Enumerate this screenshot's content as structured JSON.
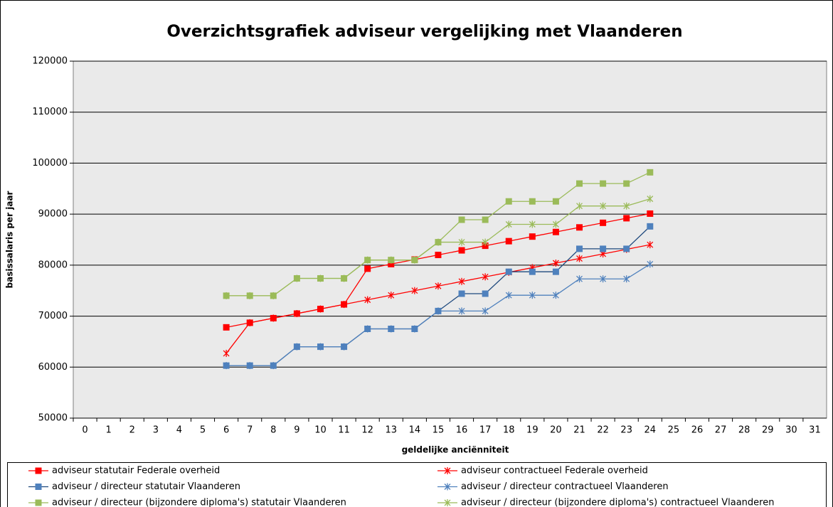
{
  "chart_data": {
    "type": "line",
    "title": "Overzichtsgrafiek adviseur vergelijking met Vlaanderen",
    "x_label": "geldelijke anciënniteit",
    "y_label": "basissalaris per jaar",
    "categories": [
      0,
      1,
      2,
      3,
      4,
      5,
      6,
      7,
      8,
      9,
      10,
      11,
      12,
      13,
      14,
      15,
      16,
      17,
      18,
      19,
      20,
      21,
      22,
      23,
      24,
      25,
      26,
      27,
      28,
      29,
      30,
      31
    ],
    "ylim": [
      50000,
      120000
    ],
    "yticks": [
      50000,
      60000,
      70000,
      80000,
      90000,
      100000,
      110000,
      120000
    ],
    "grid": true,
    "legend": "bottom",
    "series": [
      {
        "name": "adviseur statutair Federale overheid",
        "color": "#ff0000",
        "line_color": "#ff0000",
        "marker": "square",
        "values": [
          null,
          null,
          null,
          null,
          null,
          null,
          67800,
          68700,
          69600,
          70500,
          71400,
          72300,
          79300,
          80200,
          81100,
          82000,
          82900,
          83800,
          84700,
          85600,
          86500,
          87400,
          88300,
          89200,
          90100,
          null,
          null,
          null,
          null,
          null,
          null,
          null
        ]
      },
      {
        "name": "adviseur contractueel Federale overheid",
        "color": "#ff0000",
        "line_color": "#ff0000",
        "marker": "star",
        "values": [
          null,
          null,
          null,
          null,
          null,
          null,
          62700,
          68700,
          69600,
          70500,
          71400,
          72300,
          73200,
          74100,
          75000,
          75900,
          76800,
          77700,
          78600,
          79500,
          80400,
          81300,
          82200,
          83100,
          84000,
          null,
          null,
          null,
          null,
          null,
          null,
          null
        ]
      },
      {
        "name": "adviseur / directeur statutair Vlaanderen",
        "color": "#4f81bd",
        "line_color": "#1f497d",
        "marker": "square",
        "values": [
          null,
          null,
          null,
          null,
          null,
          null,
          60300,
          60300,
          60300,
          64000,
          64000,
          64000,
          67500,
          67500,
          67500,
          71000,
          74400,
          74400,
          78700,
          78700,
          78700,
          83200,
          83200,
          83200,
          87600,
          null,
          null,
          null,
          null,
          null,
          null,
          null
        ]
      },
      {
        "name": "adviseur / directeur contractueel Vlaanderen",
        "color": "#4f81bd",
        "line_color": "#4f81bd",
        "marker": "star",
        "values": [
          null,
          null,
          null,
          null,
          null,
          null,
          60300,
          60300,
          60300,
          64000,
          64000,
          64000,
          67500,
          67500,
          67500,
          71000,
          71000,
          71000,
          74100,
          74100,
          74100,
          77300,
          77300,
          77300,
          80200,
          null,
          null,
          null,
          null,
          null,
          null,
          null
        ]
      },
      {
        "name": "adviseur / directeur (bijzondere diploma's) statutair Vlaanderen",
        "color": "#9bbb59",
        "line_color": "#9bbb59",
        "marker": "square",
        "values": [
          null,
          null,
          null,
          null,
          null,
          null,
          74000,
          74000,
          74000,
          77400,
          77400,
          77400,
          81000,
          81000,
          81000,
          84500,
          88900,
          88900,
          92500,
          92500,
          92500,
          96000,
          96000,
          96000,
          98200,
          null,
          null,
          null,
          null,
          null,
          null,
          null
        ]
      },
      {
        "name": "adviseur / directeur (bijzondere diploma's) contractueel Vlaanderen",
        "color": "#9bbb59",
        "line_color": "#9bbb59",
        "marker": "star",
        "values": [
          null,
          null,
          null,
          null,
          null,
          null,
          74000,
          74000,
          74000,
          77400,
          77400,
          77400,
          81000,
          81000,
          81000,
          84500,
          84500,
          84500,
          88000,
          88000,
          88000,
          91600,
          91600,
          91600,
          93000,
          null,
          null,
          null,
          null,
          null,
          null,
          null
        ]
      }
    ]
  }
}
